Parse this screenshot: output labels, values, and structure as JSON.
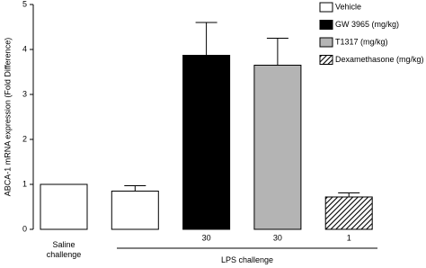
{
  "chart_data": {
    "type": "bar",
    "y_label": "ABCA-1 mRNA expression (Fold Difference)",
    "categories": [
      null,
      null,
      "30",
      "30",
      "1"
    ],
    "group_labels": [
      "Saline challenge",
      "LPS challenge"
    ],
    "series": [
      {
        "name": "Vehicle",
        "color": "#ffffff",
        "values": [
          1.0,
          0.85,
          null,
          null,
          null
        ],
        "errors": [
          null,
          0.12,
          null,
          null,
          null
        ]
      },
      {
        "name": "GW 3965 (mg/kg)",
        "color": "#000000",
        "values": [
          null,
          null,
          3.87,
          null,
          null
        ],
        "errors": [
          null,
          null,
          0.73,
          null,
          null
        ]
      },
      {
        "name": "T1317 (mg/kg)",
        "color": "#b4b4b4",
        "values": [
          null,
          null,
          null,
          3.65,
          null
        ],
        "errors": [
          null,
          null,
          null,
          0.6,
          null
        ]
      },
      {
        "name": "Dexamethasone (mg/kg)",
        "color": "#333333",
        "pattern": "hatch",
        "values": [
          null,
          null,
          null,
          null,
          0.72
        ],
        "errors": [
          null,
          null,
          null,
          null,
          0.09
        ]
      }
    ],
    "ylim": [
      0,
      5
    ],
    "yticks": [
      0,
      1,
      2,
      3,
      4,
      5
    ],
    "legend": "upper right"
  }
}
